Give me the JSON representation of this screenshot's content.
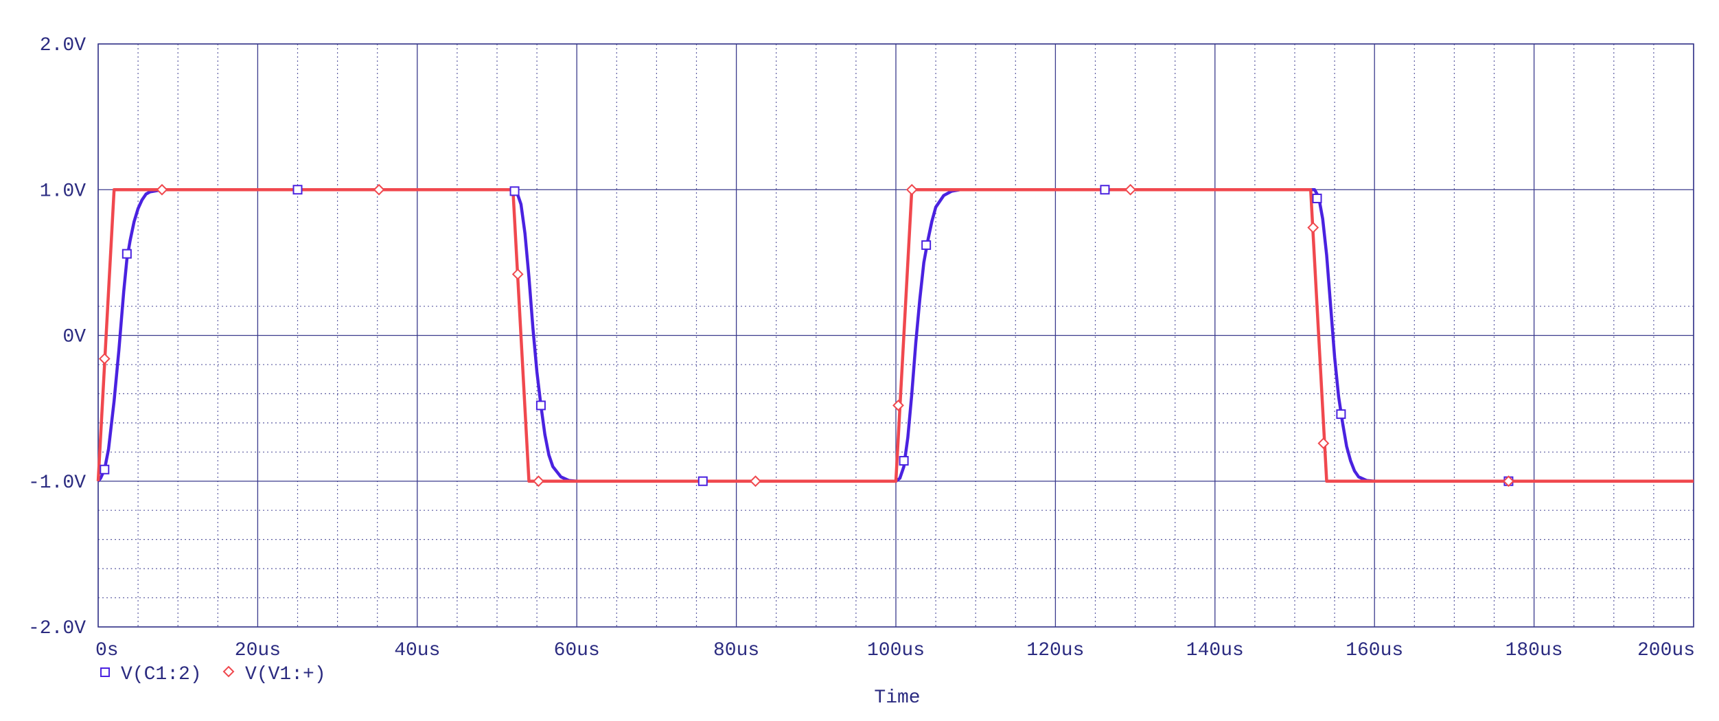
{
  "chart_data": {
    "type": "line",
    "xlabel": "Time",
    "ylabel": "",
    "xlim": [
      0,
      200
    ],
    "ylim": [
      -2,
      2
    ],
    "x_unit": "us",
    "x_major_ticks": [
      0,
      20,
      40,
      60,
      80,
      100,
      120,
      140,
      160,
      180,
      200
    ],
    "x_tick_labels": [
      "0s",
      "20us",
      "40us",
      "60us",
      "80us",
      "100us",
      "120us",
      "140us",
      "160us",
      "180us",
      "200us"
    ],
    "y_major_ticks": [
      -2,
      -1,
      0,
      1,
      2
    ],
    "y_tick_labels": [
      "-2.0V",
      "-1.0V",
      "0V",
      "1.0V",
      "2.0V"
    ],
    "x_minor_step": 5,
    "y_minor_step": 0.2,
    "grid": true,
    "legend_position": "bottom-left",
    "colors": {
      "grid_major": "#3a3a8c",
      "grid_minor": "#5a5aa0",
      "text": "#2b2b80"
    },
    "series": [
      {
        "name": "V(C1:2)",
        "color": "#4a22e0",
        "marker": "square",
        "x": [
          0,
          0.3,
          0.8,
          1.3,
          2.0,
          2.6,
          3.2,
          3.6,
          4.0,
          4.5,
          5.0,
          5.5,
          6.0,
          6.5,
          7.0,
          8.0,
          10.0,
          15.0,
          25.0,
          35.0,
          45.0,
          50.0,
          51.0,
          52.0,
          52.5,
          53.0,
          53.5,
          54.0,
          54.5,
          55.0,
          55.5,
          56.0,
          56.5,
          57.0,
          58.0,
          59.0,
          60.0,
          70.0,
          80.0,
          90.0,
          99.0,
          100.0,
          100.5,
          101.0,
          101.5,
          102.0,
          102.5,
          103.0,
          103.5,
          104.0,
          104.5,
          105.0,
          106.0,
          107.0,
          108.0,
          115.0,
          126.0,
          140.0,
          152.0,
          152.5,
          153.0,
          153.5,
          154.0,
          154.5,
          155.0,
          155.5,
          156.0,
          156.5,
          157.0,
          157.5,
          158.0,
          159.0,
          160.0,
          170.0,
          180.0,
          200.0
        ],
        "y": [
          -1.0,
          -0.98,
          -0.92,
          -0.78,
          -0.45,
          -0.1,
          0.3,
          0.52,
          0.65,
          0.78,
          0.87,
          0.93,
          0.97,
          0.985,
          0.99,
          1.0,
          1.0,
          1.0,
          1.0,
          1.0,
          1.0,
          1.0,
          1.0,
          1.0,
          0.98,
          0.9,
          0.7,
          0.4,
          0.05,
          -0.25,
          -0.48,
          -0.68,
          -0.82,
          -0.9,
          -0.97,
          -0.995,
          -1.0,
          -1.0,
          -1.0,
          -1.0,
          -1.0,
          -1.0,
          -0.98,
          -0.9,
          -0.7,
          -0.4,
          -0.05,
          0.25,
          0.5,
          0.65,
          0.78,
          0.88,
          0.96,
          0.99,
          1.0,
          1.0,
          1.0,
          1.0,
          1.0,
          1.0,
          0.95,
          0.8,
          0.55,
          0.2,
          -0.15,
          -0.42,
          -0.6,
          -0.76,
          -0.86,
          -0.93,
          -0.97,
          -0.995,
          -1.0,
          -1.0,
          -1.0,
          -1.0
        ]
      },
      {
        "name": "V(V1:+)",
        "color": "#f0484e",
        "marker": "diamond",
        "x": [
          0,
          2.0,
          50.0,
          52.0,
          54.0,
          100.0,
          102.0,
          152.0,
          154.0,
          200.0
        ],
        "y": [
          -1.0,
          1.0,
          1.0,
          1.0,
          -1.0,
          -1.0,
          1.0,
          1.0,
          -1.0,
          -1.0
        ]
      }
    ],
    "markers": {
      "V(C1:2)": [
        [
          0.8,
          -0.92
        ],
        [
          3.6,
          0.56
        ],
        [
          25.0,
          1.0
        ],
        [
          52.2,
          0.99
        ],
        [
          55.5,
          -0.48
        ],
        [
          75.8,
          -1.0
        ],
        [
          101.0,
          -0.86
        ],
        [
          103.8,
          0.62
        ],
        [
          126.2,
          1.0
        ],
        [
          152.8,
          0.94
        ],
        [
          155.8,
          -0.54
        ],
        [
          176.8,
          -1.0
        ]
      ],
      "V(V1:+)": [
        [
          0.8,
          -0.16
        ],
        [
          8.0,
          1.0
        ],
        [
          35.2,
          1.0
        ],
        [
          52.6,
          0.42
        ],
        [
          55.2,
          -1.0
        ],
        [
          82.4,
          -1.0
        ],
        [
          100.3,
          -0.48
        ],
        [
          102.0,
          1.0
        ],
        [
          129.4,
          1.0
        ],
        [
          152.3,
          0.74
        ],
        [
          153.6,
          -0.74
        ],
        [
          176.8,
          -1.0
        ]
      ]
    }
  }
}
